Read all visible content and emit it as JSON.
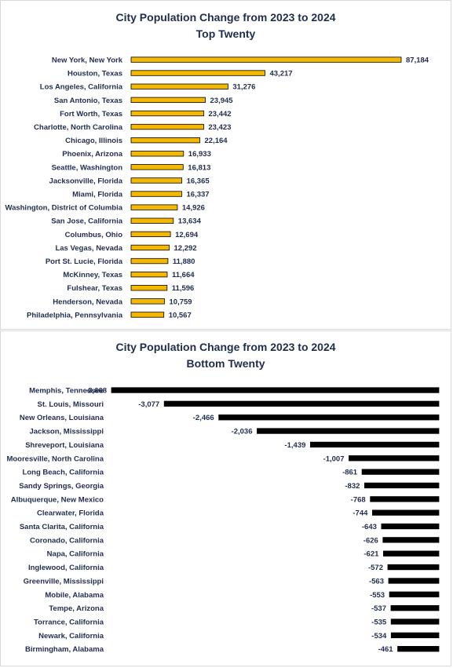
{
  "chart_data": [
    {
      "type": "bar",
      "orientation": "horizontal",
      "title": "City Population Change from 2023 to 2024",
      "subtitle": "Top Twenty",
      "categories": [
        "New York, New York",
        "Houston, Texas",
        "Los Angeles, California",
        "San Antonio, Texas",
        "Fort Worth, Texas",
        "Charlotte, North Carolina",
        "Chicago, Illinois",
        "Phoenix, Arizona",
        "Seattle, Washington",
        "Jacksonville, Florida",
        "Miami, Florida",
        "Washington, District of Columbia",
        "San Jose, California",
        "Columbus, Ohio",
        "Las Vegas, Nevada",
        "Port St. Lucie, Florida",
        "McKinney, Texas",
        "Fulshear, Texas",
        "Henderson, Nevada",
        "Philadelphia, Pennsylvania"
      ],
      "values": [
        87184,
        43217,
        31276,
        23945,
        23442,
        23423,
        22164,
        16933,
        16813,
        16365,
        16337,
        14926,
        13634,
        12694,
        12292,
        11880,
        11664,
        11596,
        10759,
        10567
      ],
      "labels": [
        "87,184",
        "43,217",
        "31,276",
        "23,945",
        "23,442",
        "23,423",
        "22,164",
        "16,933",
        "16,813",
        "16,365",
        "16,337",
        "14,926",
        "13,634",
        "12,694",
        "12,292",
        "11,880",
        "11,664",
        "11,596",
        "10,759",
        "10,567"
      ],
      "bar_color": "#f5b800",
      "bar_edge": "#000000",
      "grid": false,
      "legend": "none"
    },
    {
      "type": "bar",
      "orientation": "horizontal",
      "title": "City Population Change from 2023 to 2024",
      "subtitle": "Bottom Twenty",
      "categories": [
        "Memphis, Tennessee",
        "St. Louis, Missouri",
        "New Orleans, Louisiana",
        "Jackson, Mississippi",
        "Shreveport, Louisiana",
        "Mooresville, North Carolina",
        "Long Beach, California",
        "Sandy Springs, Georgia",
        "Albuquerque, New Mexico",
        "Clearwater, Florida",
        "Santa Clarita, California",
        "Coronado, California",
        "Napa, California",
        "Inglewood, California",
        "Greenville, Mississippi",
        "Mobile, Alabama",
        "Tempe, Arizona",
        "Torrance, California",
        "Newark, California",
        "Birmingham, Alabama"
      ],
      "values": [
        -3668,
        -3077,
        -2466,
        -2036,
        -1439,
        -1007,
        -861,
        -832,
        -768,
        -744,
        -643,
        -626,
        -621,
        -572,
        -563,
        -553,
        -537,
        -535,
        -534,
        -461
      ],
      "labels": [
        "-3,668",
        "-3,077",
        "-2,466",
        "-2,036",
        "-1,439",
        "-1,007",
        "-861",
        "-832",
        "-768",
        "-744",
        "-643",
        "-626",
        "-621",
        "-572",
        "-563",
        "-553",
        "-537",
        "-535",
        "-534",
        "-461"
      ],
      "bar_color": "#000000",
      "bar_edge": "#000000",
      "grid": false,
      "legend": "none"
    }
  ]
}
